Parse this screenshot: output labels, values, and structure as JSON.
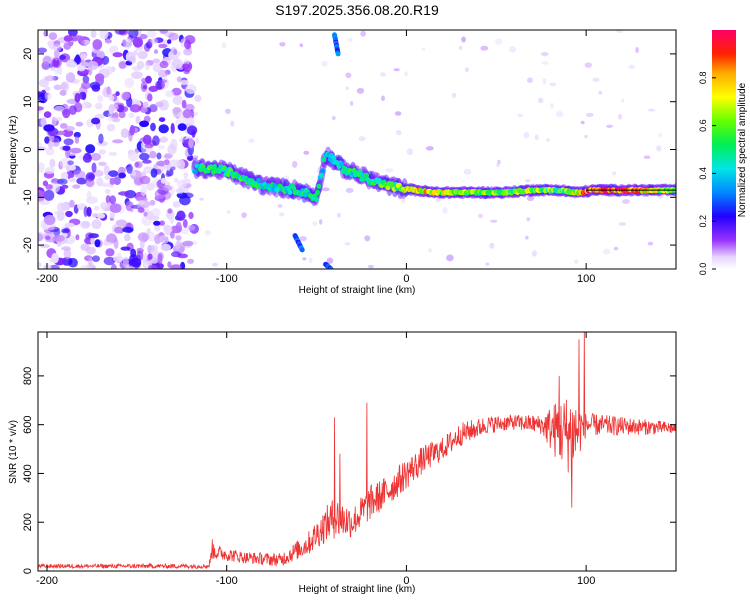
{
  "title": "S197.2025.356.08.20.R19",
  "chart_data": [
    {
      "type": "heatmap",
      "name": "spectrogram",
      "xlabel": "Height of straight line (km)",
      "ylabel": "Frequency (Hz)",
      "xlim": [
        -205,
        150
      ],
      "ylim": [
        -25,
        25
      ],
      "x_ticks": [
        -200,
        -100,
        0,
        100
      ],
      "x_tick_labels": [
        "-200",
        "-100",
        "0",
        "100"
      ],
      "y_ticks": [
        20,
        10,
        0,
        -10,
        -20
      ],
      "y_tick_labels": [
        "20",
        "10",
        "0",
        "-10",
        "-20"
      ],
      "colorbar": {
        "label": "Normalized spectral amplitude",
        "range": [
          0,
          1
        ],
        "ticks": [
          0.0,
          0.2,
          0.4,
          0.6,
          0.8
        ],
        "tick_labels": [
          "0.0",
          "0.2",
          "0.4",
          "0.6",
          "0.8"
        ]
      },
      "noise_region_x": [
        -205,
        -118
      ],
      "track": [
        {
          "x": -118,
          "y": -4,
          "a": 0.45
        },
        {
          "x": -110,
          "y": -4,
          "a": 0.55
        },
        {
          "x": -100,
          "y": -4.5,
          "a": 0.5
        },
        {
          "x": -90,
          "y": -6,
          "a": 0.5
        },
        {
          "x": -80,
          "y": -7.5,
          "a": 0.45
        },
        {
          "x": -70,
          "y": -8,
          "a": 0.45
        },
        {
          "x": -60,
          "y": -8.5,
          "a": 0.5
        },
        {
          "x": -50,
          "y": -10,
          "a": 0.45
        },
        {
          "x": -45,
          "y": -1,
          "a": 0.4
        },
        {
          "x": -35,
          "y": -4,
          "a": 0.45
        },
        {
          "x": -25,
          "y": -5.5,
          "a": 0.5
        },
        {
          "x": -15,
          "y": -7,
          "a": 0.55
        },
        {
          "x": -5,
          "y": -8,
          "a": 0.6
        },
        {
          "x": 5,
          "y": -8.5,
          "a": 0.7
        },
        {
          "x": 15,
          "y": -9,
          "a": 0.75
        },
        {
          "x": 25,
          "y": -9,
          "a": 0.65
        },
        {
          "x": 40,
          "y": -9,
          "a": 0.6
        },
        {
          "x": 55,
          "y": -9,
          "a": 0.6
        },
        {
          "x": 70,
          "y": -8.5,
          "a": 0.65
        },
        {
          "x": 85,
          "y": -8.5,
          "a": 0.55
        },
        {
          "x": 95,
          "y": -9,
          "a": 0.7
        },
        {
          "x": 105,
          "y": -8.5,
          "a": 0.95
        },
        {
          "x": 115,
          "y": -8.5,
          "a": 1.0
        },
        {
          "x": 125,
          "y": -8.5,
          "a": 0.95
        },
        {
          "x": 135,
          "y": -8.5,
          "a": 0.7
        },
        {
          "x": 150,
          "y": -8.5,
          "a": 0.55
        }
      ],
      "reference_line": {
        "x": [
          100,
          150
        ],
        "y": -8.5
      }
    },
    {
      "type": "line",
      "name": "snr",
      "xlabel": "Height of straight line (km)",
      "ylabel": "SNR (10 * v/v)",
      "xlim": [
        -205,
        150
      ],
      "ylim": [
        0,
        980
      ],
      "x_ticks": [
        -200,
        -100,
        0,
        100
      ],
      "x_tick_labels": [
        "-200",
        "-100",
        "0",
        "100"
      ],
      "y_ticks": [
        0,
        200,
        400,
        600,
        800
      ],
      "y_tick_labels": [
        "0",
        "200",
        "400",
        "600",
        "800"
      ],
      "color": "#ee3333",
      "envelope": [
        {
          "x": -205,
          "y": 20,
          "n": 10
        },
        {
          "x": -110,
          "y": 20,
          "n": 12
        },
        {
          "x": -108,
          "y": 80,
          "n": 40
        },
        {
          "x": -90,
          "y": 55,
          "n": 30
        },
        {
          "x": -70,
          "y": 45,
          "n": 35
        },
        {
          "x": -55,
          "y": 110,
          "n": 60
        },
        {
          "x": -45,
          "y": 190,
          "n": 90
        },
        {
          "x": -40,
          "y": 220,
          "n": 110
        },
        {
          "x": -30,
          "y": 200,
          "n": 80
        },
        {
          "x": -20,
          "y": 280,
          "n": 90
        },
        {
          "x": -10,
          "y": 330,
          "n": 80
        },
        {
          "x": 0,
          "y": 400,
          "n": 80
        },
        {
          "x": 10,
          "y": 460,
          "n": 70
        },
        {
          "x": 20,
          "y": 500,
          "n": 60
        },
        {
          "x": 30,
          "y": 560,
          "n": 60
        },
        {
          "x": 45,
          "y": 600,
          "n": 45
        },
        {
          "x": 60,
          "y": 610,
          "n": 40
        },
        {
          "x": 75,
          "y": 600,
          "n": 50
        },
        {
          "x": 82,
          "y": 580,
          "n": 140
        },
        {
          "x": 92,
          "y": 560,
          "n": 220
        },
        {
          "x": 100,
          "y": 600,
          "n": 60
        },
        {
          "x": 150,
          "y": 585,
          "n": 30
        }
      ],
      "spikes": [
        {
          "x": -108,
          "y": 130
        },
        {
          "x": -40,
          "y": 630
        },
        {
          "x": -37,
          "y": 480
        },
        {
          "x": -22,
          "y": 690
        },
        {
          "x": 85,
          "y": 800
        },
        {
          "x": 96,
          "y": 950
        },
        {
          "x": 99,
          "y": 1000
        },
        {
          "x": 92,
          "y": 260
        }
      ]
    }
  ]
}
